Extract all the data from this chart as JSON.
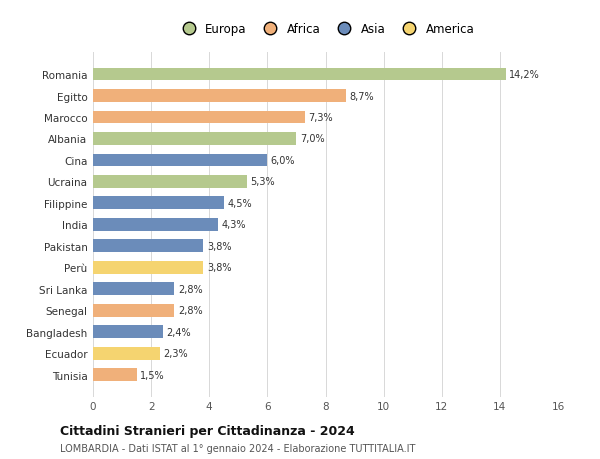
{
  "categories": [
    "Romania",
    "Egitto",
    "Marocco",
    "Albania",
    "Cina",
    "Ucraina",
    "Filippine",
    "India",
    "Pakistan",
    "Perù",
    "Sri Lanka",
    "Senegal",
    "Bangladesh",
    "Ecuador",
    "Tunisia"
  ],
  "values": [
    14.2,
    8.7,
    7.3,
    7.0,
    6.0,
    5.3,
    4.5,
    4.3,
    3.8,
    3.8,
    2.8,
    2.8,
    2.4,
    2.3,
    1.5
  ],
  "labels": [
    "14,2%",
    "8,7%",
    "7,3%",
    "7,0%",
    "6,0%",
    "5,3%",
    "4,5%",
    "4,3%",
    "3,8%",
    "3,8%",
    "2,8%",
    "2,8%",
    "2,4%",
    "2,3%",
    "1,5%"
  ],
  "colors": [
    "#b5c98e",
    "#f0b07a",
    "#f0b07a",
    "#b5c98e",
    "#6b8cba",
    "#b5c98e",
    "#6b8cba",
    "#6b8cba",
    "#6b8cba",
    "#f5d470",
    "#6b8cba",
    "#f0b07a",
    "#6b8cba",
    "#f5d470",
    "#f0b07a"
  ],
  "continent_labels": [
    "Europa",
    "Africa",
    "Asia",
    "America"
  ],
  "continent_colors": [
    "#b5c98e",
    "#f0b07a",
    "#6b8cba",
    "#f5d470"
  ],
  "title": "Cittadini Stranieri per Cittadinanza - 2024",
  "subtitle": "LOMBARDIA - Dati ISTAT al 1° gennaio 2024 - Elaborazione TUTTITALIA.IT",
  "xlim": [
    0,
    16
  ],
  "xticks": [
    0,
    2,
    4,
    6,
    8,
    10,
    12,
    14,
    16
  ],
  "background_color": "#ffffff",
  "grid_color": "#d8d8d8"
}
